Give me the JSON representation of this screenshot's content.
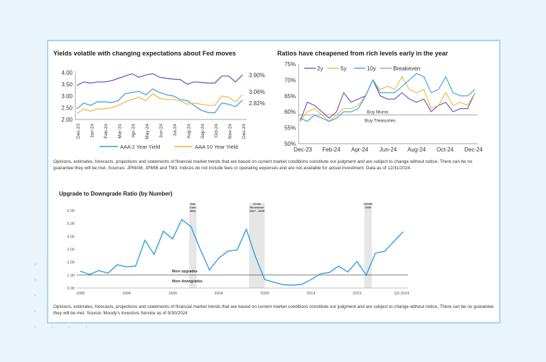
{
  "colors": {
    "blue": "#2f9fe0",
    "purple": "#6a4bb5",
    "yellow": "#f2b43a",
    "gray": "#999999",
    "band": "#e6e6e6",
    "border": "#a8d4f2"
  },
  "chart_data": [
    {
      "type": "line",
      "title": "Yields volatile with changing expectations about Fed moves",
      "ylim": [
        2.0,
        4.0
      ],
      "yticks": [
        "4.00",
        "3.50",
        "3.00",
        "2.50",
        "2.00"
      ],
      "xticks": [
        "Dec-23",
        "Jan-24",
        "Feb-24",
        "Mar-24",
        "Apr-24",
        "May-24",
        "Jun-24",
        "Jul-24",
        "Aug-24",
        "Sep-24",
        "Oct-24",
        "Nov-24",
        "Dec-24"
      ],
      "legend_position": "bottom",
      "series": [
        {
          "color": "#6a4bb5",
          "end_label": "3.90%",
          "values": [
            3.45,
            3.6,
            3.55,
            3.6,
            3.6,
            3.65,
            3.75,
            3.85,
            3.95,
            3.8,
            3.9,
            3.95,
            3.8,
            3.75,
            3.72,
            3.7,
            3.5,
            3.6,
            3.58,
            3.55,
            3.55,
            3.85,
            3.85,
            3.6,
            3.9
          ]
        },
        {
          "name": "AAA 2 Year Yield",
          "color": "#2f9fe0",
          "end_label": "2.82%",
          "values": [
            2.45,
            2.7,
            2.6,
            2.75,
            2.75,
            2.72,
            2.8,
            3.1,
            3.15,
            3.2,
            3.05,
            3.3,
            3.15,
            3.05,
            3.0,
            2.85,
            2.8,
            2.6,
            2.4,
            2.3,
            2.28,
            2.7,
            2.65,
            2.55,
            2.82
          ]
        },
        {
          "name": "AAA 10 Year Yield",
          "color": "#f2b43a",
          "end_label": "3.06%",
          "values": [
            2.25,
            2.45,
            2.35,
            2.45,
            2.45,
            2.5,
            2.6,
            2.75,
            2.85,
            2.95,
            2.8,
            3.1,
            2.9,
            2.85,
            2.85,
            2.8,
            2.65,
            2.7,
            2.65,
            2.6,
            2.6,
            3.0,
            2.95,
            2.75,
            3.06
          ]
        }
      ]
    },
    {
      "type": "line",
      "title": "Ratios have cheapened from rich levels early in the year",
      "ylim": [
        50,
        75
      ],
      "yticks": [
        "75%",
        "70%",
        "65%",
        "60%",
        "55%",
        "50%"
      ],
      "xticks": [
        "Dec-23",
        "Feb-24",
        "Apr-24",
        "Jun-24",
        "Aug-24",
        "Oct-24",
        "Dec-24"
      ],
      "legend_position": "top",
      "breakeven": 59,
      "annotations": [
        "Buy Munis",
        "Buy Treasuries"
      ],
      "series": [
        {
          "name": "2y",
          "color": "#6a4bb5",
          "values": [
            57,
            63,
            62,
            60,
            58,
            60,
            66,
            63,
            64,
            65,
            70,
            65,
            64,
            64,
            66,
            64,
            63,
            64,
            60,
            62,
            63,
            60,
            61,
            61,
            66
          ]
        },
        {
          "name": "5y",
          "color": "#f2b43a",
          "values": [
            57,
            60,
            61,
            59,
            57,
            59,
            61,
            61,
            62,
            65,
            70,
            67,
            68,
            67,
            71,
            67,
            66,
            67,
            61,
            62,
            66,
            62,
            63,
            62,
            66
          ]
        },
        {
          "name": "10y",
          "color": "#2f9fe0",
          "values": [
            58,
            57,
            59,
            58,
            57,
            58,
            60,
            60,
            61,
            65,
            70,
            66,
            66,
            66,
            68,
            70,
            72,
            71,
            66,
            67,
            71,
            66,
            65,
            65,
            67
          ]
        },
        {
          "name": "Breakeven",
          "color": "#999999"
        }
      ]
    },
    {
      "type": "line",
      "title": "Upgrade to Downgrade Ratio (by Number)",
      "ylim": [
        0,
        6
      ],
      "yticks": [
        "6.00",
        "5.00",
        "4.00",
        "3.00",
        "2.00",
        "1.00",
        "0.00"
      ],
      "xticks": [
        "1989",
        "1994",
        "1999",
        "2004",
        "2009",
        "2014",
        "2019",
        "Q3 2024"
      ],
      "x": [
        1989,
        1990,
        1991,
        1992,
        1993,
        1994,
        1995,
        1996,
        1997,
        1998,
        1999,
        2000,
        2001,
        2002,
        2003,
        2004,
        2005,
        2006,
        2007,
        2008,
        2009,
        2010,
        2011,
        2012,
        2013,
        2014,
        2015,
        2016,
        2017,
        2018,
        2019,
        2020,
        2021,
        2022,
        2023,
        2024
      ],
      "values": [
        1.3,
        1.05,
        1.35,
        1.15,
        1.8,
        1.65,
        1.7,
        3.7,
        2.6,
        4.4,
        3.8,
        5.3,
        4.75,
        3.0,
        1.4,
        2.3,
        2.85,
        2.95,
        4.55,
        2.4,
        0.65,
        0.45,
        0.25,
        0.22,
        0.28,
        0.65,
        1.1,
        1.2,
        1.7,
        1.25,
        2.05,
        1.0,
        2.7,
        2.85,
        3.6,
        4.35
      ],
      "reference_line": 1.0,
      "reference_labels": [
        "More upgrades",
        "More downgrades"
      ],
      "bands": [
        {
          "from": 2000.8,
          "to": 2001.6,
          "label": [
            "Dot",
            "Com",
            "2001"
          ]
        },
        {
          "from": 2007.3,
          "to": 2009.0,
          "label": [
            "Great",
            "Recession",
            "2007 - 2009"
          ]
        },
        {
          "from": 2019.8,
          "to": 2020.6,
          "label": [
            "COVID",
            "2020"
          ]
        }
      ]
    }
  ],
  "notes": {
    "top": "Opinions, estimates, forecasts, projections and statements of financial market trends that are based on current market conditions constitute our judgment and are subject to change without notice. There can be no guarantee they will be met. Sources: JPMAM, JPMIB and TM3. Indices do not include fees or operating expenses and are not available for actual investment. Data as of 12/31/2024.",
    "bottom": "Opinions, estimates, forecasts, projections and statements of financial market trends that are based on current market conditions constitute our judgment and are subject to change without notice. There can be no guarantee they will be met. Source: Moody's Investors Service as of 9/30/2024"
  }
}
